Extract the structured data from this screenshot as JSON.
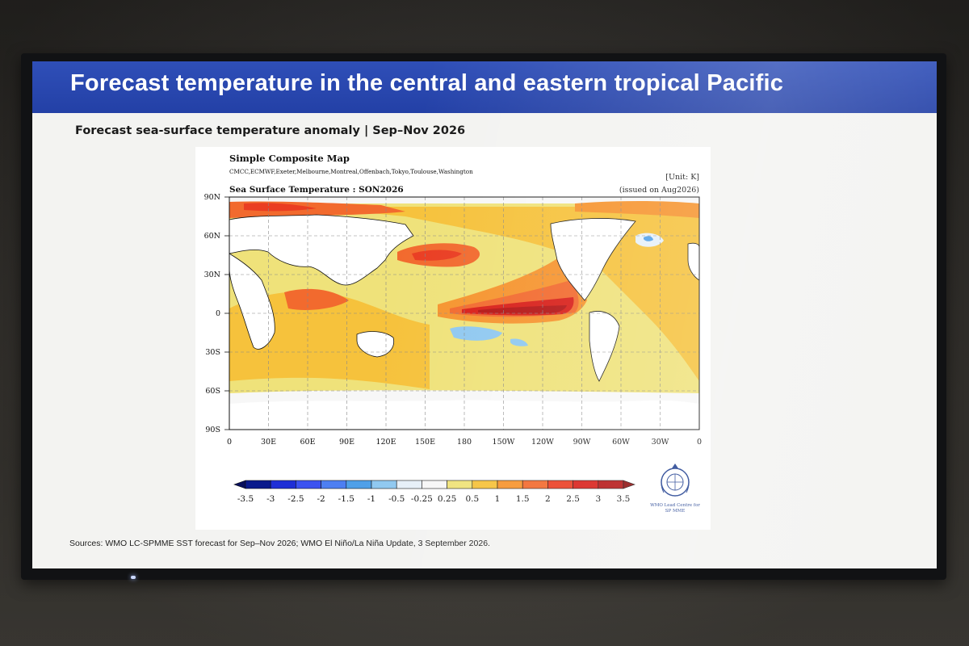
{
  "slide": {
    "title": "Forecast temperature in the central and eastern tropical Pacific",
    "subtitle": "Forecast sea-surface temperature anomaly | Sep–Nov 2026",
    "sources": "Sources: WMO LC-SPMME SST forecast for Sep–Nov 2026; WMO El Niño/La Niña Update, 3 September 2026.",
    "colors": {
      "title_bar": "#2340a6",
      "title_text": "#ffffff"
    }
  },
  "map": {
    "heading": "Simple Composite Map",
    "centres": "CMCC,ECMWF,Exeter,Melbourne,Montreal,Offenbach,Tokyo,Toulouse,Washington",
    "unit": "[Unit: K]",
    "plot_title": "Sea Surface Temperature : SON2026",
    "issued": "(issued on Aug2026)",
    "lat_ticks": [
      "90N",
      "60N",
      "30N",
      "0",
      "30S",
      "60S",
      "90S"
    ],
    "lon_ticks": [
      "0",
      "30E",
      "60E",
      "90E",
      "120E",
      "150E",
      "180",
      "150W",
      "120W",
      "90W",
      "60W",
      "30W",
      "0"
    ]
  },
  "colorbar": {
    "labels": [
      "-3.5",
      "-3",
      "-2.5",
      "-2",
      "-1.5",
      "-1",
      "-0.5",
      "-0.25",
      "0.25",
      "0.5",
      "1",
      "1.5",
      "2",
      "2.5",
      "3",
      "3.5"
    ],
    "colors": [
      "#0a1a8c",
      "#1f2fd6",
      "#3c52f0",
      "#4d7ff2",
      "#4fa0e8",
      "#8fc8f0",
      "#e6f0f8",
      "#f7f7f7",
      "#efe27a",
      "#f6c23c",
      "#f6942e",
      "#f26a2e",
      "#ea3d22",
      "#d81e18",
      "#b41414"
    ]
  },
  "logo": {
    "label_line1": "WMO Lead Centre for",
    "label_line2": "SP MME",
    "icon": "wmo-emblem-icon"
  }
}
